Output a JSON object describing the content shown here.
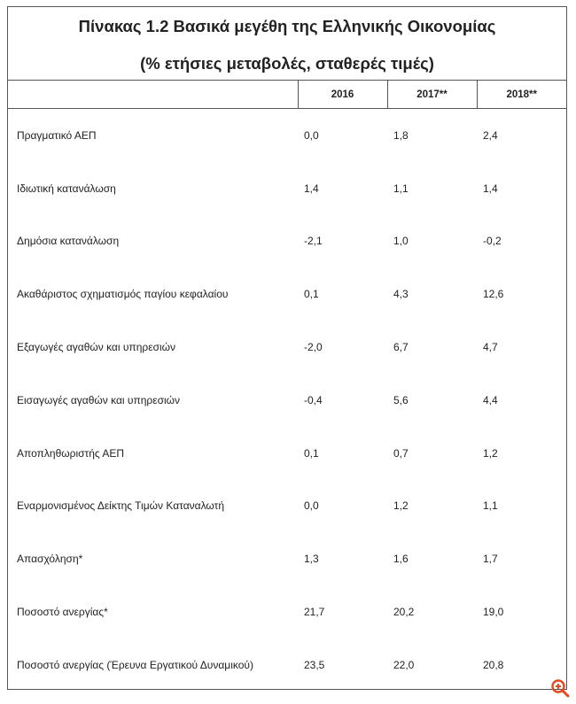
{
  "title": "Πίνακας 1.2 Βασικά μεγέθη της Ελληνικής Οικονομίας",
  "subtitle": "(% ετήσιες μεταβολές, σταθερές τιμές)",
  "columns": [
    "",
    "2016",
    "2017**",
    "2018**"
  ],
  "rows": [
    {
      "label": "Πραγματικό ΑΕΠ",
      "v2016": "0,0",
      "v2017": "1,8",
      "v2018": "2,4"
    },
    {
      "label": "Ιδιωτική κατανάλωση",
      "v2016": "1,4",
      "v2017": "1,1",
      "v2018": "1,4"
    },
    {
      "label": "Δημόσια κατανάλωση",
      "v2016": "-2,1",
      "v2017": "1,0",
      "v2018": "-0,2"
    },
    {
      "label": "Ακαθάριστος σχηματισμός παγίου κεφαλαίου",
      "v2016": "0,1",
      "v2017": "4,3",
      "v2018": "12,6"
    },
    {
      "label": "Εξαγωγές αγαθών και υπηρεσιών",
      "v2016": "-2,0",
      "v2017": "6,7",
      "v2018": "4,7"
    },
    {
      "label": "Εισαγωγές αγαθών και υπηρεσιών",
      "v2016": "-0,4",
      "v2017": "5,6",
      "v2018": "4,4"
    },
    {
      "label": "Αποπληθωριστής ΑΕΠ",
      "v2016": "0,1",
      "v2017": "0,7",
      "v2018": "1,2"
    },
    {
      "label": "Εναρμονισμένος Δείκτης Τιμών Καταναλωτή",
      "v2016": "0,0",
      "v2017": "1,2",
      "v2018": "1,1"
    },
    {
      "label": "Απασχόληση*",
      "v2016": "1,3",
      "v2017": "1,6",
      "v2018": "1,7"
    },
    {
      "label": "Ποσοστό ανεργίας*",
      "v2016": "21,7",
      "v2017": "20,2",
      "v2018": "19,0"
    },
    {
      "label": "Ποσοστό ανεργίας (Έρευνα Εργατικού Δυναμικού)",
      "v2016": "23,5",
      "v2017": "22,0",
      "v2018": "20,8"
    }
  ],
  "icons": {
    "zoom": "zoom-in-icon"
  },
  "colors": {
    "zoom": "#e8481c",
    "border": "#555555"
  }
}
